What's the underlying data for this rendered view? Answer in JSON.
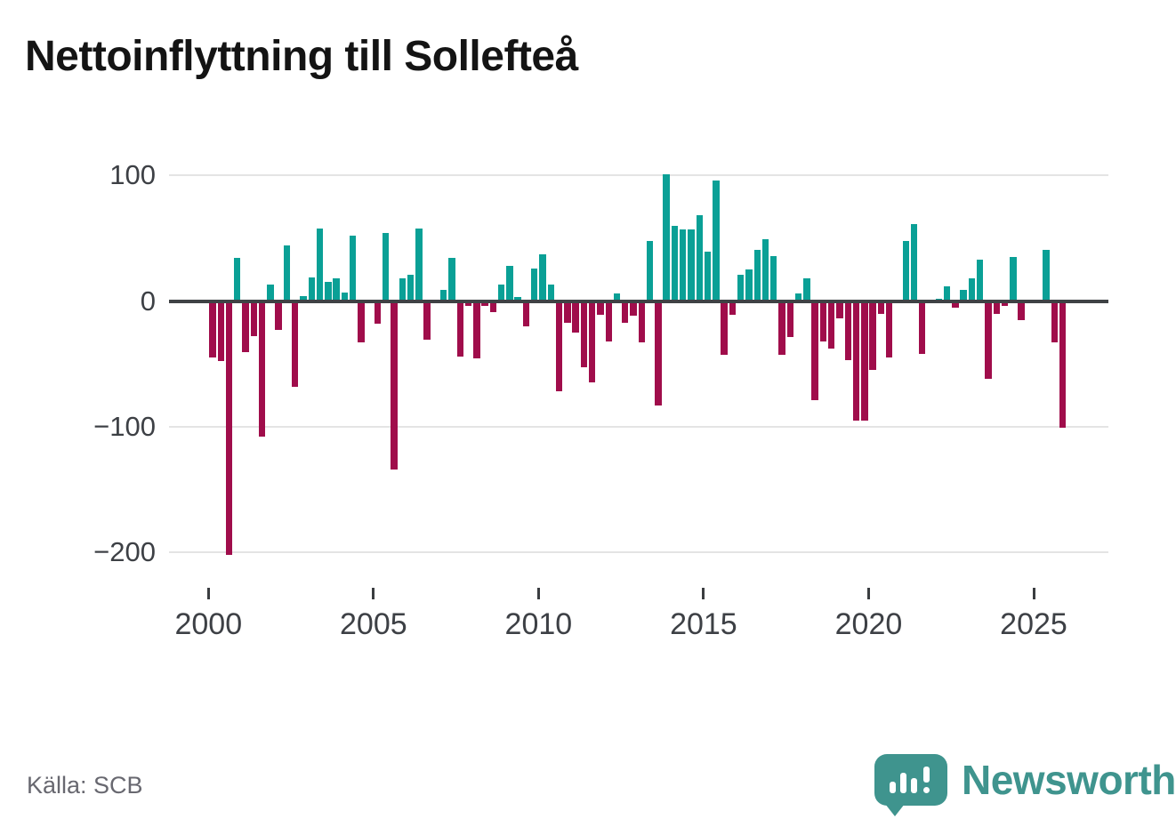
{
  "title": "Nettoinflyttning till Sollefteå",
  "source": "Källa: SCB",
  "logo": {
    "text": "Newsworthy"
  },
  "colors": {
    "positive": "#0aa096",
    "negative": "#a00d4b",
    "gridline": "#e4e4e4",
    "zeroline": "#3f4245",
    "logo_teal": "#3f948e"
  },
  "chart_data": {
    "type": "bar",
    "title": "Nettoinflyttning till Sollefteå",
    "frequency": "quarterly",
    "start_quarter": "2000Q1",
    "end_quarter": "2025Q4",
    "values": [
      -45,
      -48,
      -202,
      34,
      -41,
      -28,
      -108,
      13,
      -23,
      44,
      -68,
      4,
      19,
      58,
      15,
      18,
      7,
      52,
      -33,
      0,
      -18,
      54,
      -134,
      18,
      21,
      58,
      -31,
      0,
      9,
      34,
      -44,
      -4,
      -46,
      -4,
      -9,
      13,
      28,
      3,
      -20,
      26,
      37,
      13,
      -72,
      -17,
      -25,
      -53,
      -65,
      -11,
      -32,
      6,
      -17,
      -12,
      -33,
      48,
      -83,
      101,
      60,
      57,
      57,
      68,
      39,
      96,
      -43,
      -11,
      21,
      25,
      41,
      49,
      36,
      -43,
      -29,
      6,
      18,
      -79,
      -32,
      -38,
      -14,
      -47,
      -95,
      -95,
      -55,
      -10,
      -45,
      0,
      48,
      61,
      -42,
      0,
      2,
      12,
      -5,
      9,
      18,
      33,
      -62,
      -10,
      -4,
      35,
      -15,
      0,
      0,
      41,
      -33,
      -101
    ],
    "x_tick_years": [
      2000,
      2005,
      2010,
      2015,
      2020,
      2025
    ],
    "x_tick_labels": [
      "2000",
      "2005",
      "2010",
      "2015",
      "2020",
      "2025"
    ],
    "y_ticks": [
      100,
      0,
      -100,
      -200
    ],
    "y_tick_labels": [
      "100",
      "0",
      "−100",
      "−200"
    ],
    "ylim": [
      -215,
      130
    ],
    "xlabel": "",
    "ylabel": "",
    "grid": "horizontal",
    "legend": "none"
  }
}
